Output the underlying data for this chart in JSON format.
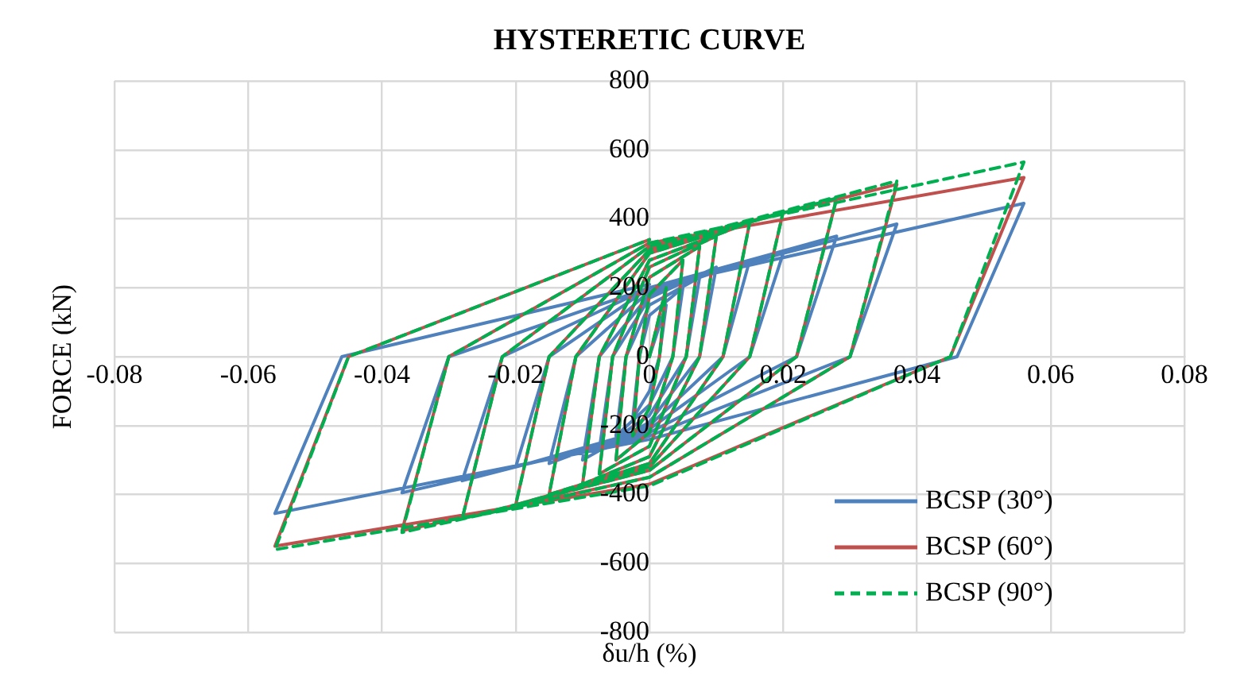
{
  "chart_data": {
    "type": "line",
    "title": "HYSTERETIC CURVE",
    "xlabel": "δu/h (%)",
    "ylabel": "FORCE (kN)",
    "xlim": [
      -0.08,
      0.08
    ],
    "xticks": [
      -0.08,
      -0.06,
      -0.04,
      -0.02,
      0,
      0.02,
      0.04,
      0.06,
      0.08
    ],
    "ylim": [
      -800,
      800
    ],
    "yticks": [
      -800,
      -600,
      -400,
      -200,
      0,
      200,
      400,
      600,
      800
    ],
    "grid": true,
    "legend": "bottom right",
    "marker": "none",
    "series": [
      {
        "name": "BCSP (30°)",
        "color": "#4f81bd",
        "line_style": "solid",
        "x": [
          0,
          0.0025,
          0.0015,
          0,
          -0.0025,
          -0.0015,
          0,
          0.005,
          0.0035,
          0,
          -0.005,
          -0.0035,
          0,
          0.0075,
          0.0055,
          0,
          -0.0075,
          -0.0055,
          0,
          0.01,
          0.0075,
          0,
          -0.01,
          -0.0075,
          0,
          0.015,
          0.011,
          0,
          -0.015,
          -0.011,
          0,
          0.02,
          0.015,
          0,
          -0.02,
          -0.015,
          0,
          0.028,
          0.022,
          0,
          -0.028,
          -0.022,
          0,
          0.037,
          0.03,
          0,
          -0.037,
          -0.03,
          0,
          0.056,
          0.046,
          0,
          -0.056,
          -0.046,
          0
        ],
        "values": [
          0,
          150,
          0,
          -100,
          -180,
          0,
          120,
          200,
          0,
          -140,
          -230,
          0,
          150,
          230,
          0,
          -170,
          -270,
          0,
          170,
          260,
          0,
          -190,
          -300,
          0,
          180,
          280,
          0,
          -200,
          -310,
          0,
          190,
          300,
          0,
          -210,
          -320,
          0,
          200,
          350,
          0,
          -220,
          -360,
          0,
          200,
          385,
          0,
          -230,
          -395,
          0,
          200,
          445,
          0,
          -240,
          -455,
          0,
          210
        ]
      },
      {
        "name": "BCSP (60°)",
        "color": "#c0504d",
        "line_style": "solid",
        "x": [
          0,
          0.0025,
          0.0015,
          0,
          -0.0025,
          -0.0015,
          0,
          0.005,
          0.0035,
          0,
          -0.005,
          -0.0035,
          0,
          0.0075,
          0.0055,
          0,
          -0.0075,
          -0.0055,
          0,
          0.01,
          0.0075,
          0,
          -0.01,
          -0.0075,
          0,
          0.015,
          0.011,
          0,
          -0.015,
          -0.011,
          0,
          0.02,
          0.015,
          0,
          -0.02,
          -0.015,
          0,
          0.028,
          0.022,
          0,
          -0.028,
          -0.022,
          0,
          0.037,
          0.03,
          0,
          -0.037,
          -0.03,
          0,
          0.056,
          0.045,
          0,
          -0.056,
          -0.045,
          0
        ],
        "values": [
          0,
          200,
          0,
          -150,
          -230,
          0,
          180,
          280,
          0,
          -220,
          -300,
          0,
          230,
          320,
          0,
          -260,
          -340,
          0,
          260,
          350,
          0,
          -290,
          -370,
          0,
          280,
          390,
          0,
          -310,
          -400,
          0,
          300,
          420,
          0,
          -320,
          -430,
          0,
          310,
          460,
          0,
          -330,
          -470,
          0,
          320,
          500,
          0,
          -350,
          -505,
          0,
          330,
          520,
          0,
          -370,
          -550,
          0,
          340
        ]
      },
      {
        "name": "BCSP (90°)",
        "color": "#00b050",
        "line_style": "dashed",
        "x": [
          0,
          0.0025,
          0.0015,
          0,
          -0.0025,
          -0.0015,
          0,
          0.005,
          0.0035,
          0,
          -0.005,
          -0.0035,
          0,
          0.0075,
          0.0055,
          0,
          -0.0075,
          -0.0055,
          0,
          0.01,
          0.0075,
          0,
          -0.01,
          -0.0075,
          0,
          0.015,
          0.011,
          0,
          -0.015,
          -0.011,
          0,
          0.02,
          0.015,
          0,
          -0.02,
          -0.015,
          0,
          0.028,
          0.022,
          0,
          -0.028,
          -0.022,
          0,
          0.037,
          0.03,
          0,
          -0.037,
          -0.03,
          0,
          0.056,
          0.045,
          0,
          -0.056,
          -0.045,
          0
        ],
        "values": [
          0,
          200,
          0,
          -150,
          -230,
          0,
          180,
          280,
          0,
          -220,
          -300,
          0,
          230,
          320,
          0,
          -260,
          -340,
          0,
          260,
          350,
          0,
          -290,
          -370,
          0,
          280,
          390,
          0,
          -310,
          -400,
          0,
          300,
          420,
          0,
          -320,
          -430,
          0,
          310,
          460,
          0,
          -330,
          -470,
          0,
          320,
          510,
          0,
          -350,
          -510,
          0,
          330,
          565,
          0,
          -375,
          -560,
          0,
          340
        ]
      }
    ]
  }
}
